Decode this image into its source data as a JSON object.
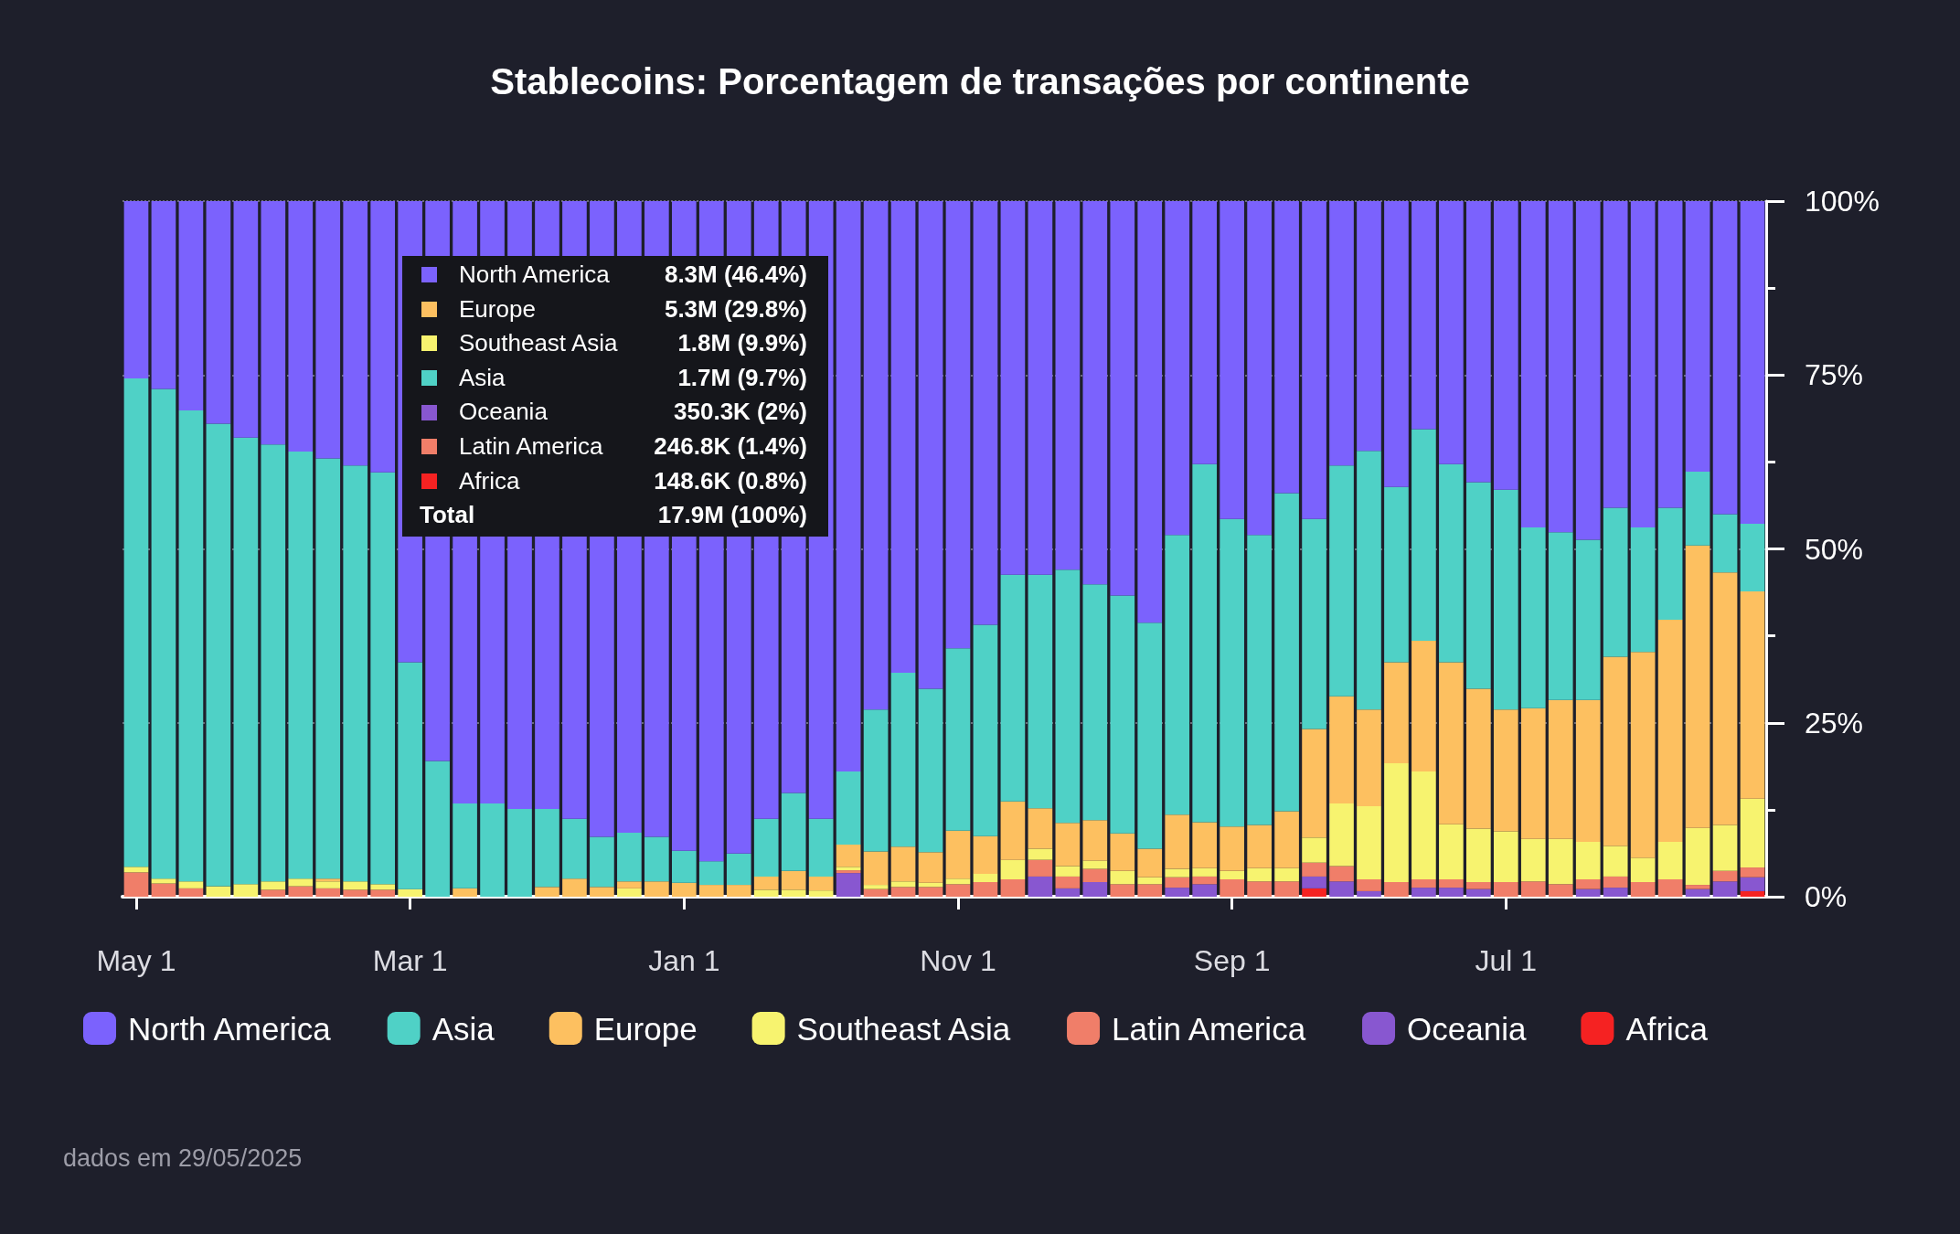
{
  "chart_data": {
    "type": "bar",
    "title": "Stablecoins: Porcentagem de transações por continente",
    "categories": [
      "May 1",
      null,
      null,
      null,
      null,
      null,
      null,
      null,
      null,
      null,
      "Mar 1",
      null,
      null,
      null,
      null,
      null,
      null,
      null,
      null,
      null,
      "Jan 1",
      null,
      null,
      null,
      null,
      null,
      null,
      null,
      null,
      null,
      "Nov 1",
      null,
      null,
      null,
      null,
      null,
      null,
      null,
      null,
      null,
      "Sep 1",
      null,
      null,
      null,
      null,
      null,
      null,
      null,
      null,
      null,
      "Jul 1",
      null,
      null,
      null,
      null,
      null,
      null,
      null,
      null,
      null
    ],
    "series": [
      {
        "name": "Africa",
        "color": "#f52222",
        "values": [
          0,
          0,
          0,
          0,
          0,
          0,
          0,
          0,
          0,
          0,
          0,
          0,
          0,
          0,
          0,
          0,
          0,
          0,
          0,
          0,
          0,
          0,
          0,
          0,
          0,
          0,
          0,
          0,
          0,
          0,
          0,
          0,
          0,
          0,
          0,
          0,
          0,
          0,
          0,
          0,
          0,
          0,
          0,
          1.2,
          0,
          0,
          0,
          0,
          0,
          0,
          0,
          0,
          0,
          0,
          0,
          0,
          0,
          0,
          0,
          0.8
        ]
      },
      {
        "name": "Oceania",
        "color": "#8857d0",
        "values": [
          0,
          0,
          0,
          0,
          0,
          0,
          0,
          0,
          0,
          0,
          0,
          0,
          0,
          0,
          0,
          0,
          0,
          0,
          0,
          0,
          0,
          0,
          0,
          0,
          0,
          0,
          3.4,
          0,
          0,
          0,
          0,
          0,
          0,
          2.9,
          1.2,
          2.1,
          0,
          0,
          1.3,
          1.8,
          0,
          0,
          0,
          1.7,
          2.2,
          0.8,
          0,
          1.3,
          1.3,
          1.1,
          0,
          0,
          0,
          1.1,
          1.3,
          0,
          0,
          1.1,
          2.2,
          2
        ]
      },
      {
        "name": "Latin America",
        "color": "#f07e69",
        "values": [
          3.5,
          1.9,
          1.2,
          0,
          0,
          1.0,
          1.5,
          1.2,
          1.0,
          1.0,
          0,
          0,
          0,
          0,
          0,
          0,
          0,
          0,
          0,
          0,
          0,
          0,
          0,
          0,
          0,
          0,
          0.4,
          1.1,
          1.4,
          1.4,
          1.8,
          2.1,
          2.5,
          2.4,
          1.7,
          1.9,
          1.8,
          1.8,
          1.5,
          1.1,
          2.5,
          2.2,
          2.2,
          2.0,
          2.2,
          1.7,
          2.1,
          1.2,
          1.2,
          1.0,
          2.1,
          2.2,
          1.8,
          1.4,
          1.6,
          2.1,
          2.5,
          0.6,
          1.5,
          1.4
        ]
      },
      {
        "name": "Southeast Asia",
        "color": "#f7f36f",
        "values": [
          0.8,
          0.7,
          1.0,
          1.5,
          1.8,
          1.2,
          1.1,
          1.0,
          1.2,
          0.8,
          1.1,
          0,
          0,
          0,
          0,
          0,
          0,
          0,
          1.2,
          0,
          0,
          0,
          0,
          1.0,
          1.0,
          0.9,
          0.5,
          0.6,
          0.8,
          0.6,
          0.8,
          1.2,
          2.8,
          1.6,
          1.5,
          1.2,
          1.9,
          1.0,
          1.2,
          1.2,
          1.2,
          1.9,
          1.9,
          3.6,
          9.0,
          10.5,
          17.1,
          15.5,
          7.9,
          7.7,
          7.3,
          6.1,
          6.5,
          5.4,
          4.4,
          3.5,
          5.4,
          8.2,
          6.6,
          9.9
        ]
      },
      {
        "name": "Europe",
        "color": "#fdc060",
        "values": [
          0,
          0,
          0,
          0,
          0,
          0,
          0,
          0.4,
          0,
          0,
          0,
          0,
          1.2,
          0,
          0,
          1.4,
          2.6,
          1.4,
          1.0,
          2.2,
          2.0,
          1.7,
          1.7,
          1.9,
          2.7,
          2.0,
          3.2,
          4.8,
          5.0,
          4.4,
          6.9,
          5.4,
          8.4,
          5.8,
          6.2,
          5.8,
          5.4,
          4.1,
          7.8,
          6.6,
          6.4,
          6.2,
          8.2,
          15.6,
          15.4,
          13.9,
          14.5,
          18.8,
          23.3,
          20.1,
          17.5,
          18.8,
          20.0,
          20.4,
          27.2,
          29.6,
          31.9,
          40.6,
          36.3,
          29.8
        ]
      },
      {
        "name": "Asia",
        "color": "#4fd1c6",
        "values": [
          70.2,
          70.4,
          67.7,
          66.5,
          64.2,
          62.8,
          61.4,
          60.4,
          59.8,
          59.2,
          32.6,
          19.5,
          12.2,
          13.4,
          12.6,
          11.2,
          8.6,
          7.2,
          7.0,
          6.4,
          4.6,
          3.4,
          4.5,
          8.3,
          11.2,
          8.3,
          10.5,
          20.4,
          25.0,
          23.5,
          26.2,
          30.4,
          32.6,
          33.6,
          36.4,
          33.9,
          34.2,
          32.5,
          40.2,
          51.5,
          44.2,
          41.7,
          45.7,
          30.2,
          33.2,
          37.2,
          25.2,
          30.4,
          28.5,
          29.7,
          31.6,
          26.0,
          24.1,
          23.0,
          21.4,
          17.9,
          16.1,
          10.6,
          8.4,
          9.7
        ]
      },
      {
        "name": "North America",
        "color": "#7b62fd",
        "values": [
          25.5,
          27.0,
          30.1,
          32.0,
          34.0,
          35.0,
          36.0,
          37.0,
          38.0,
          39.0,
          66.3,
          80.5,
          86.6,
          86.6,
          87.4,
          87.4,
          88.8,
          91.4,
          90.8,
          91.4,
          93.4,
          94.9,
          93.8,
          88.8,
          85.1,
          88.8,
          82.0,
          73.1,
          67.8,
          70.1,
          64.3,
          60.9,
          53.7,
          53.7,
          53.0,
          55.1,
          56.7,
          60.6,
          48.0,
          37.8,
          45.7,
          48.0,
          42.0,
          45.7,
          38.0,
          35.9,
          41.1,
          32.8,
          37.8,
          40.4,
          41.5,
          46.9,
          47.6,
          48.7,
          44.1,
          46.9,
          44.1,
          38.9,
          45.0,
          46.4
        ]
      }
    ],
    "stacked": true,
    "ylim": [
      0,
      100
    ],
    "yticks": [
      {
        "value": 0,
        "label": "0%"
      },
      {
        "value": 12.5,
        "label": null
      },
      {
        "value": 25,
        "label": "25%"
      },
      {
        "value": 37.5,
        "label": null
      },
      {
        "value": 50,
        "label": "50%"
      },
      {
        "value": 62.5,
        "label": null
      },
      {
        "value": 75,
        "label": "75%"
      },
      {
        "value": 87.5,
        "label": null
      },
      {
        "value": 100,
        "label": "100%"
      }
    ],
    "grid": "y",
    "legend": "bottom",
    "annotations": [
      "North America",
      "8.3M (46.4%)",
      "Europe",
      "5.3M (29.8%)",
      "Southeast Asia",
      "1.8M (9.9%)",
      "Asia",
      "1.7M (9.7%)",
      "Oceania",
      "350.3K (2%)",
      "Latin America",
      "246.8K (1.4%)",
      "Africa",
      "148.6K (0.8%)",
      "Total",
      "17.9M (100%)",
      "dados em 29/05/2025"
    ]
  }
}
